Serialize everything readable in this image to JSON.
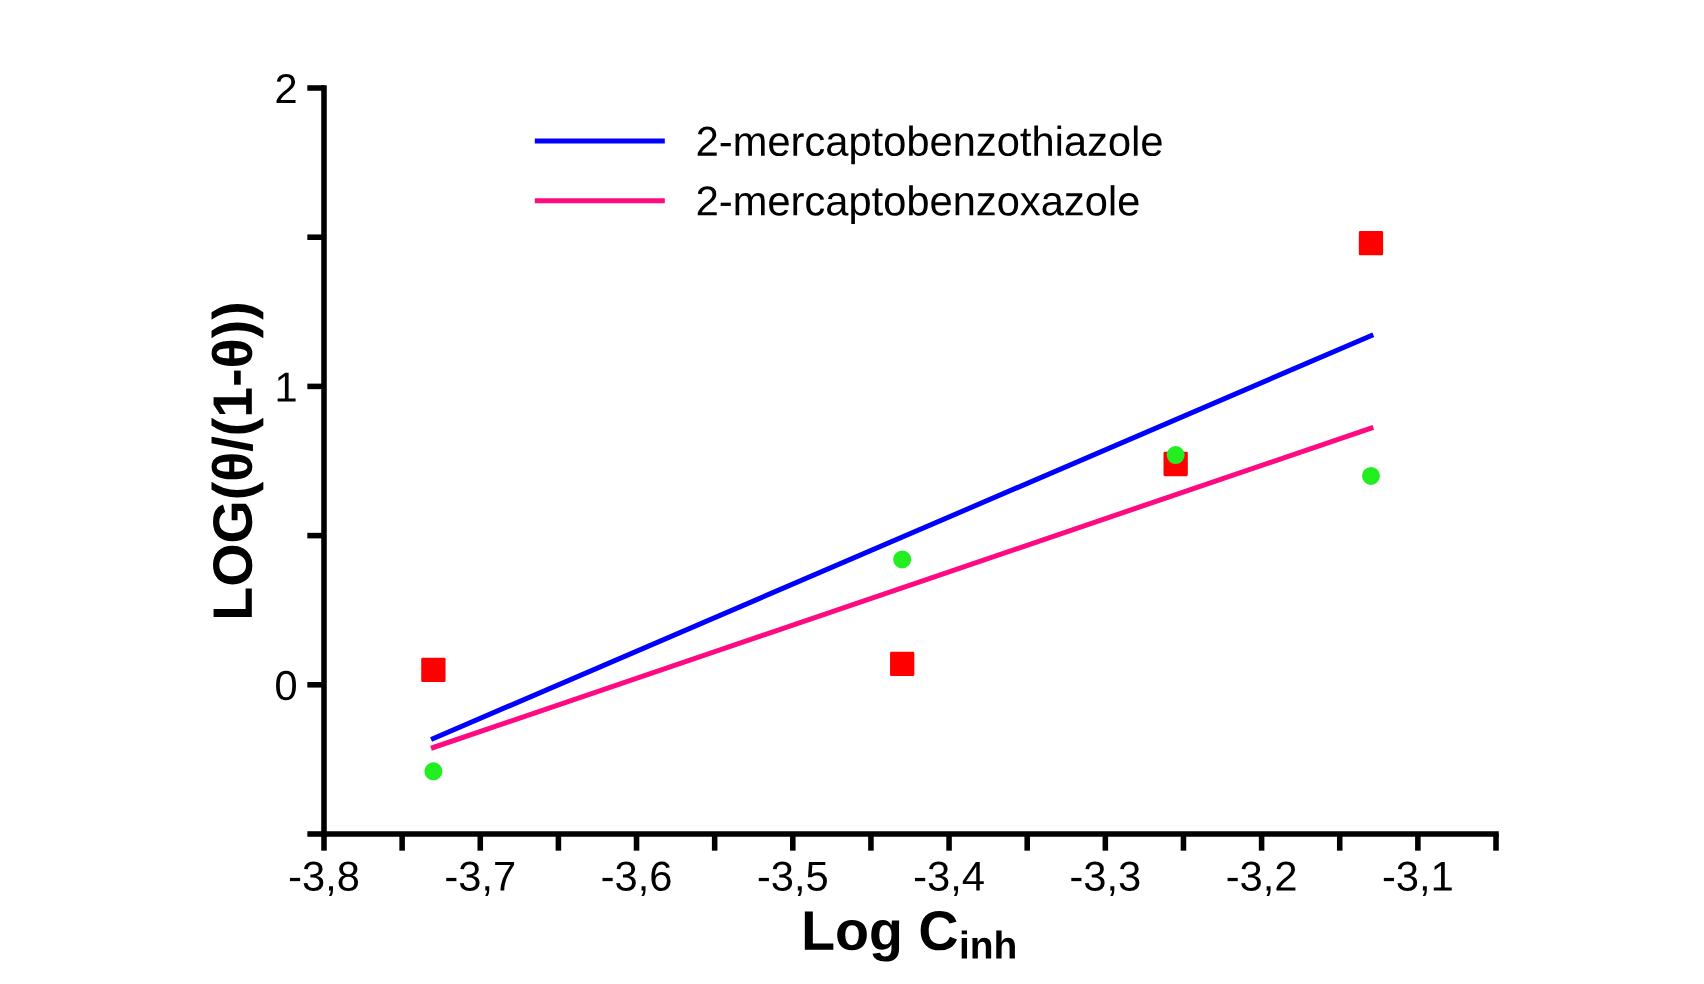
{
  "chart_data": {
    "type": "scatter",
    "xlabel": "Log C$_{inh}$",
    "ylabel": "LOG(θ/(1-θ))",
    "xlim": [
      -3.8,
      -3.05
    ],
    "ylim": [
      -0.5,
      2
    ],
    "xticks": [
      {
        "value": -3.8,
        "label": "-3,8"
      },
      {
        "value": -3.75,
        "label": null
      },
      {
        "value": -3.7,
        "label": "-3,7"
      },
      {
        "value": -3.65,
        "label": null
      },
      {
        "value": -3.6,
        "label": "-3,6"
      },
      {
        "value": -3.55,
        "label": null
      },
      {
        "value": -3.5,
        "label": "-3,5"
      },
      {
        "value": -3.45,
        "label": null
      },
      {
        "value": -3.4,
        "label": "-3,4"
      },
      {
        "value": -3.35,
        "label": null
      },
      {
        "value": -3.3,
        "label": "-3,3"
      },
      {
        "value": -3.25,
        "label": null
      },
      {
        "value": -3.2,
        "label": "-3,2"
      },
      {
        "value": -3.15,
        "label": null
      },
      {
        "value": -3.1,
        "label": "-3,1"
      },
      {
        "value": -3.05,
        "label": null
      }
    ],
    "yticks": [
      {
        "value": -0.5,
        "label": null
      },
      0,
      {
        "value": 0.5,
        "label": null
      },
      1,
      {
        "value": 1.5,
        "label": null
      },
      2
    ],
    "legend": "top left",
    "grid": false,
    "series": [
      {
        "marker": "square",
        "color": "#ff0000",
        "x": [
          -3.73,
          -3.43,
          -3.255,
          -3.13
        ],
        "values": [
          0.05,
          0.07,
          0.74,
          1.48
        ]
      },
      {
        "marker": "circle",
        "color": "#22ee22",
        "x": [
          -3.73,
          -3.43,
          -3.255,
          -3.13
        ],
        "values": [
          -0.29,
          0.42,
          0.77,
          0.7
        ]
      },
      {
        "type": "line",
        "name": "2-mercaptobenzothiazole",
        "color": "#0000ff",
        "marker": "none",
        "line_style": "solid",
        "x": [
          -3.73,
          -3.13
        ],
        "values": [
          -0.18,
          1.17
        ]
      },
      {
        "type": "line",
        "name": "2-mercaptobenzoxazole",
        "color": "#ff0a80",
        "marker": "none",
        "line_style": "solid",
        "x": [
          -3.73,
          -3.13
        ],
        "values": [
          -0.21,
          0.86
        ]
      }
    ]
  }
}
